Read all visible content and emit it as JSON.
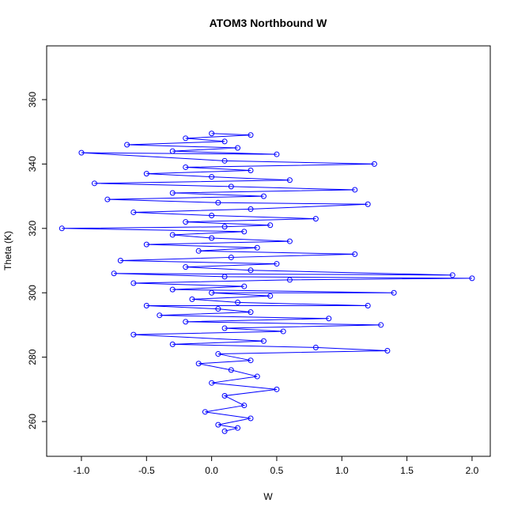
{
  "chart_data": {
    "type": "line",
    "title": "ATOM3 Northbound W",
    "x_label": "W",
    "y_label": "Theta (K)",
    "color": "#0000ff",
    "xlim": [
      -1.267,
      2.14
    ],
    "ylim": [
      249.2,
      376.7
    ],
    "xticks": [
      {
        "value": -1.0,
        "label": "-1.0"
      },
      {
        "value": -0.5,
        "label": "-0.5"
      },
      {
        "value": 0.0,
        "label": "0.0"
      },
      {
        "value": 0.5,
        "label": "0.5"
      },
      {
        "value": 1.0,
        "label": "1.0"
      },
      {
        "value": 1.5,
        "label": "1.5"
      },
      {
        "value": 2.0,
        "label": "2.0"
      }
    ],
    "yticks": [
      260,
      280,
      300,
      320,
      340,
      360
    ],
    "x": [
      0.1,
      0.2,
      0.05,
      0.3,
      -0.05,
      0.25,
      0.1,
      0.5,
      0.0,
      0.35,
      0.15,
      -0.1,
      0.3,
      0.05,
      1.35,
      0.8,
      -0.3,
      0.4,
      -0.6,
      0.55,
      0.1,
      1.3,
      -0.2,
      0.9,
      -0.4,
      0.3,
      0.05,
      -0.5,
      1.2,
      0.2,
      -0.15,
      0.45,
      0.0,
      1.4,
      -0.3,
      0.25,
      -0.6,
      0.6,
      2.0,
      0.1,
      -0.75,
      1.85,
      0.3,
      -0.2,
      0.5,
      -0.7,
      0.15,
      1.1,
      -0.1,
      0.35,
      -0.5,
      0.6,
      0.0,
      -0.3,
      0.25,
      -1.15,
      0.1,
      0.45,
      -0.2,
      0.8,
      0.0,
      -0.6,
      0.3,
      1.2,
      0.05,
      -0.8,
      0.4,
      -0.3,
      1.1,
      0.15,
      -0.9,
      0.6,
      0.0,
      -0.5,
      0.3,
      -0.2,
      1.25,
      0.1,
      -1.0,
      0.5,
      -0.3,
      0.2,
      -0.65,
      0.1,
      -0.2,
      0.3,
      0.0
    ],
    "values": [
      257,
      258,
      259,
      261,
      263,
      265,
      268,
      270,
      272,
      274,
      276,
      278,
      279,
      281,
      282,
      283,
      284,
      285,
      287,
      288,
      289,
      290,
      291,
      292,
      293,
      294,
      295,
      296,
      296,
      297,
      298,
      299,
      300,
      300,
      301,
      302,
      303,
      304,
      304.5,
      305,
      306,
      305.5,
      307,
      308,
      309,
      310,
      311,
      312,
      313,
      314,
      315,
      316,
      317,
      318,
      319,
      320,
      320.5,
      321,
      322,
      323,
      324,
      325,
      326,
      327.5,
      328,
      329,
      330,
      331,
      332,
      333,
      334,
      335,
      336,
      337,
      338,
      339,
      340,
      341,
      343.5,
      343,
      344,
      345,
      346,
      347,
      348,
      349,
      349.5
    ]
  }
}
